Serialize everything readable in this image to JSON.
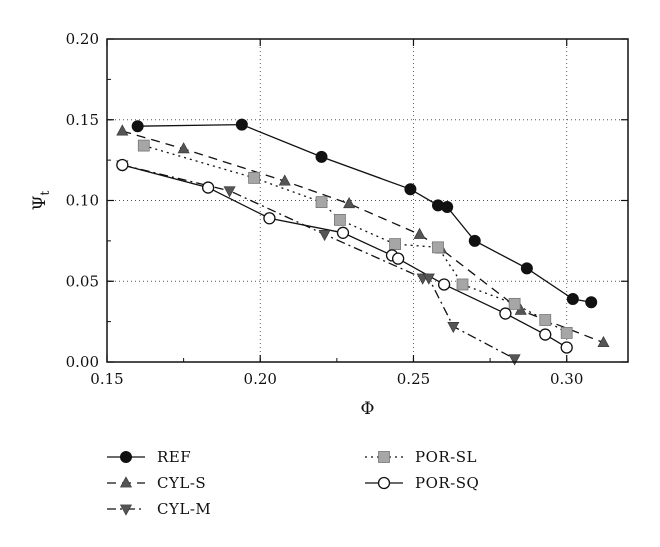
{
  "chart_data": {
    "type": "line",
    "xlabel": "Φ",
    "ylabel": "Ψ",
    "ylabel_subscript": "t",
    "xlim": [
      0.15,
      0.32
    ],
    "ylim": [
      0.0,
      0.2
    ],
    "xticks": [
      0.15,
      0.2,
      0.25,
      0.3
    ],
    "xtick_labels": [
      "0.15",
      "0.20",
      "0.25",
      "0.30"
    ],
    "yticks": [
      0.0,
      0.05,
      0.1,
      0.15,
      0.2
    ],
    "ytick_labels": [
      "0.00",
      "0.05",
      "0.10",
      "0.15",
      "0.20"
    ],
    "grid": true,
    "legend_position": "bottom",
    "series": [
      {
        "name": "REF",
        "line": "solid",
        "marker": "filled-circle",
        "x": [
          0.16,
          0.194,
          0.22,
          0.249,
          0.258,
          0.261,
          0.27,
          0.287,
          0.302,
          0.308
        ],
        "y": [
          0.146,
          0.147,
          0.127,
          0.107,
          0.097,
          0.096,
          0.075,
          0.058,
          0.039,
          0.037
        ]
      },
      {
        "name": "CYL-S",
        "line": "dashed",
        "marker": "filled-triangle-up",
        "x": [
          0.155,
          0.175,
          0.208,
          0.229,
          0.252,
          0.259,
          0.285,
          0.312
        ],
        "y": [
          0.143,
          0.132,
          0.112,
          0.098,
          0.079,
          0.07,
          0.032,
          0.012
        ]
      },
      {
        "name": "CYL-M",
        "line": "dash-dot",
        "marker": "filled-triangle-down",
        "x": [
          0.155,
          0.19,
          0.221,
          0.253,
          0.255,
          0.263,
          0.283
        ],
        "y": [
          0.122,
          0.106,
          0.079,
          0.052,
          0.052,
          0.022,
          0.002
        ]
      },
      {
        "name": "POR-SL",
        "line": "dotted",
        "marker": "filled-square",
        "x": [
          0.162,
          0.198,
          0.22,
          0.226,
          0.244,
          0.258,
          0.266,
          0.283,
          0.293,
          0.3
        ],
        "y": [
          0.134,
          0.114,
          0.099,
          0.088,
          0.073,
          0.071,
          0.048,
          0.036,
          0.026,
          0.018
        ]
      },
      {
        "name": "POR-SQ",
        "line": "solid",
        "marker": "open-circle",
        "x": [
          0.155,
          0.183,
          0.203,
          0.227,
          0.243,
          0.245,
          0.26,
          0.28,
          0.293,
          0.3
        ],
        "y": [
          0.122,
          0.108,
          0.089,
          0.08,
          0.066,
          0.064,
          0.048,
          0.03,
          0.017,
          0.009
        ]
      }
    ]
  },
  "colors": {
    "ink": "#111111",
    "marker_fill": "#111111",
    "square_fill": "#a6a6a6",
    "triangle_fill": "#555555",
    "grid": "#555555",
    "background": "#ffffff"
  }
}
